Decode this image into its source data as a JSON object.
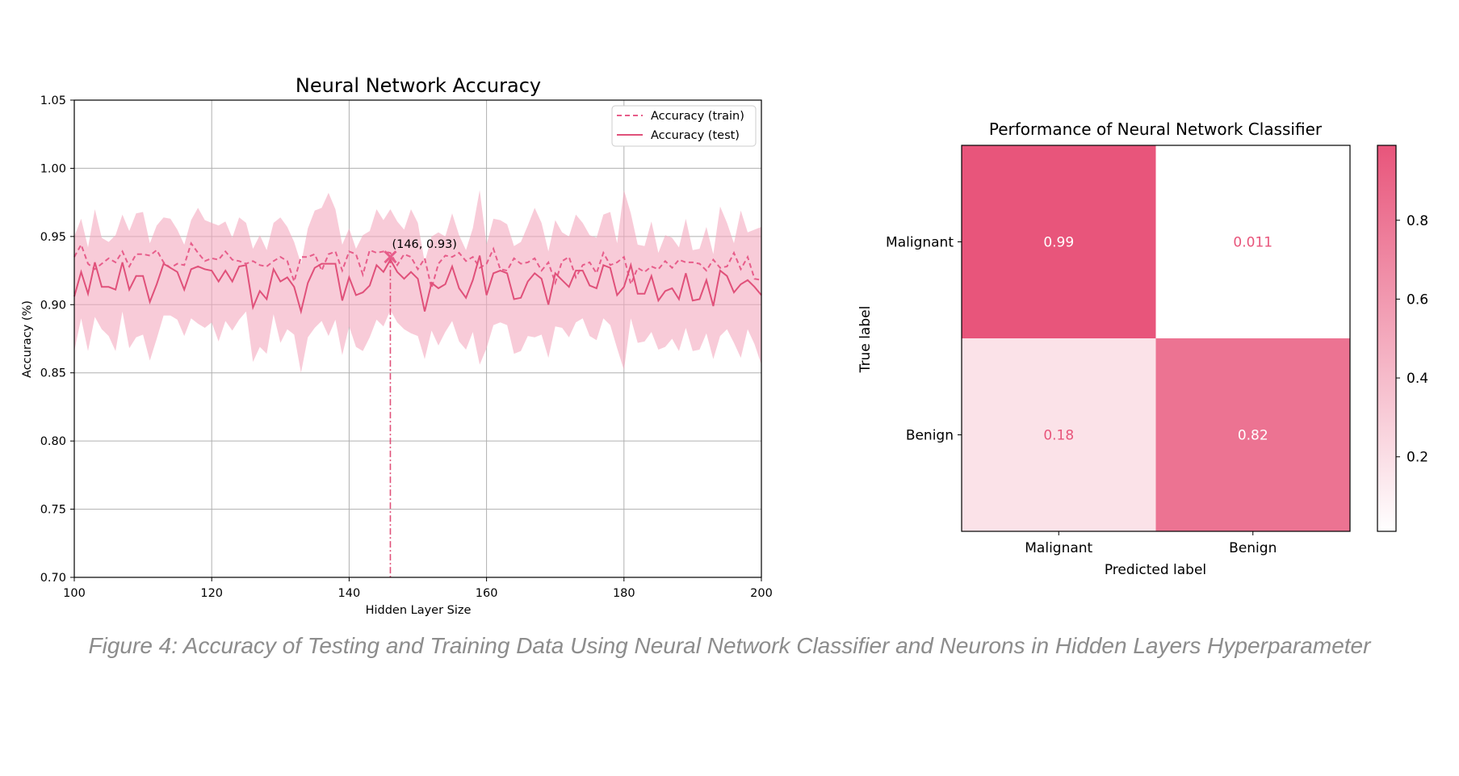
{
  "chart_data": [
    {
      "type": "line",
      "title": "Neural Network Accuracy",
      "xlabel": "Hidden Layer Size",
      "ylabel": "Accuracy (%)",
      "xlim": [
        100,
        200
      ],
      "ylim": [
        0.7,
        1.05
      ],
      "xticks": [
        "100",
        "120",
        "140",
        "160",
        "180",
        "200"
      ],
      "yticks": [
        "0.70",
        "0.75",
        "0.80",
        "0.85",
        "0.90",
        "0.95",
        "1.00",
        "1.05"
      ],
      "grid": true,
      "legend_position": "top-right",
      "x": [
        100,
        101,
        102,
        103,
        104,
        105,
        106,
        107,
        108,
        109,
        110,
        111,
        112,
        113,
        114,
        115,
        116,
        117,
        118,
        119,
        120,
        121,
        122,
        123,
        124,
        125,
        126,
        127,
        128,
        129,
        130,
        131,
        132,
        133,
        134,
        135,
        136,
        137,
        138,
        139,
        140,
        141,
        142,
        143,
        144,
        145,
        146,
        147,
        148,
        149,
        150,
        151,
        152,
        153,
        154,
        155,
        156,
        157,
        158,
        159,
        160,
        161,
        162,
        163,
        164,
        165,
        166,
        167,
        168,
        169,
        170,
        171,
        172,
        173,
        174,
        175,
        176,
        177,
        178,
        179,
        180,
        181,
        182,
        183,
        184,
        185,
        186,
        187,
        188,
        189,
        190,
        191,
        192,
        193,
        194,
        195,
        196,
        197,
        198,
        199,
        200
      ],
      "series": [
        {
          "name": "Accuracy (train)",
          "style": "dashed",
          "color": "#e75d8a",
          "values": [
            0.935,
            0.944,
            0.93,
            0.926,
            0.93,
            0.934,
            0.931,
            0.939,
            0.928,
            0.937,
            0.937,
            0.936,
            0.94,
            0.931,
            0.927,
            0.93,
            0.929,
            0.945,
            0.938,
            0.932,
            0.934,
            0.933,
            0.939,
            0.933,
            0.932,
            0.93,
            0.932,
            0.929,
            0.928,
            0.932,
            0.935,
            0.932,
            0.917,
            0.935,
            0.935,
            0.937,
            0.925,
            0.937,
            0.939,
            0.925,
            0.939,
            0.937,
            0.922,
            0.94,
            0.938,
            0.939,
            0.938,
            0.929,
            0.937,
            0.935,
            0.926,
            0.934,
            0.912,
            0.93,
            0.936,
            0.935,
            0.938,
            0.932,
            0.935,
            0.927,
            0.93,
            0.941,
            0.926,
            0.925,
            0.934,
            0.93,
            0.931,
            0.934,
            0.925,
            0.931,
            0.916,
            0.932,
            0.935,
            0.92,
            0.929,
            0.931,
            0.923,
            0.938,
            0.929,
            0.931,
            0.935,
            0.915,
            0.927,
            0.924,
            0.928,
            0.926,
            0.932,
            0.927,
            0.933,
            0.931,
            0.931,
            0.93,
            0.925,
            0.933,
            0.927,
            0.928,
            0.938,
            0.926,
            0.935,
            0.919,
            0.918
          ]
        },
        {
          "name": "Accuracy (test)",
          "style": "solid",
          "color": "#e0517a",
          "values": [
            0.906,
            0.924,
            0.908,
            0.931,
            0.913,
            0.913,
            0.911,
            0.931,
            0.911,
            0.921,
            0.921,
            0.902,
            0.915,
            0.93,
            0.927,
            0.924,
            0.911,
            0.926,
            0.928,
            0.926,
            0.925,
            0.917,
            0.925,
            0.917,
            0.928,
            0.929,
            0.898,
            0.91,
            0.904,
            0.926,
            0.917,
            0.92,
            0.913,
            0.895,
            0.916,
            0.927,
            0.93,
            0.93,
            0.93,
            0.903,
            0.92,
            0.907,
            0.909,
            0.914,
            0.929,
            0.924,
            0.933,
            0.924,
            0.919,
            0.924,
            0.919,
            0.895,
            0.916,
            0.912,
            0.915,
            0.928,
            0.912,
            0.905,
            0.918,
            0.936,
            0.907,
            0.923,
            0.925,
            0.923,
            0.904,
            0.905,
            0.917,
            0.923,
            0.919,
            0.9,
            0.923,
            0.918,
            0.913,
            0.925,
            0.925,
            0.914,
            0.912,
            0.929,
            0.927,
            0.907,
            0.913,
            0.929,
            0.908,
            0.908,
            0.921,
            0.903,
            0.91,
            0.912,
            0.904,
            0.923,
            0.903,
            0.904,
            0.918,
            0.899,
            0.925,
            0.921,
            0.909,
            0.915,
            0.918,
            0.913,
            0.907
          ]
        }
      ],
      "band": {
        "color": "#f3a8be",
        "upper": [
          0.95,
          0.963,
          0.942,
          0.97,
          0.949,
          0.946,
          0.951,
          0.966,
          0.954,
          0.967,
          0.968,
          0.945,
          0.958,
          0.964,
          0.963,
          0.955,
          0.944,
          0.962,
          0.971,
          0.962,
          0.96,
          0.958,
          0.961,
          0.949,
          0.964,
          0.96,
          0.941,
          0.951,
          0.94,
          0.96,
          0.964,
          0.957,
          0.946,
          0.93,
          0.956,
          0.969,
          0.971,
          0.982,
          0.97,
          0.944,
          0.956,
          0.941,
          0.951,
          0.954,
          0.97,
          0.962,
          0.97,
          0.961,
          0.955,
          0.97,
          0.96,
          0.931,
          0.95,
          0.953,
          0.95,
          0.967,
          0.951,
          0.94,
          0.956,
          0.984,
          0.944,
          0.963,
          0.962,
          0.959,
          0.943,
          0.946,
          0.958,
          0.971,
          0.96,
          0.939,
          0.962,
          0.953,
          0.95,
          0.966,
          0.96,
          0.951,
          0.949,
          0.966,
          0.968,
          0.945,
          0.984,
          0.967,
          0.944,
          0.943,
          0.961,
          0.938,
          0.951,
          0.949,
          0.942,
          0.963,
          0.94,
          0.941,
          0.957,
          0.937,
          0.972,
          0.96,
          0.945,
          0.969,
          0.953,
          0.955,
          0.957
        ],
        "lower": [
          0.866,
          0.89,
          0.866,
          0.891,
          0.882,
          0.877,
          0.866,
          0.895,
          0.868,
          0.876,
          0.878,
          0.859,
          0.875,
          0.892,
          0.892,
          0.889,
          0.877,
          0.89,
          0.886,
          0.883,
          0.887,
          0.873,
          0.888,
          0.881,
          0.889,
          0.895,
          0.858,
          0.869,
          0.864,
          0.893,
          0.872,
          0.882,
          0.878,
          0.85,
          0.876,
          0.883,
          0.888,
          0.877,
          0.889,
          0.863,
          0.884,
          0.869,
          0.866,
          0.876,
          0.889,
          0.884,
          0.896,
          0.887,
          0.882,
          0.879,
          0.877,
          0.86,
          0.881,
          0.87,
          0.88,
          0.888,
          0.873,
          0.867,
          0.88,
          0.856,
          0.868,
          0.885,
          0.887,
          0.885,
          0.864,
          0.866,
          0.877,
          0.876,
          0.878,
          0.861,
          0.884,
          0.883,
          0.876,
          0.887,
          0.89,
          0.877,
          0.874,
          0.89,
          0.885,
          0.868,
          0.852,
          0.89,
          0.872,
          0.873,
          0.88,
          0.867,
          0.869,
          0.875,
          0.866,
          0.883,
          0.866,
          0.867,
          0.879,
          0.86,
          0.877,
          0.882,
          0.872,
          0.861,
          0.882,
          0.871,
          0.856
        ]
      },
      "annotation": {
        "text": "(146, 0.93)",
        "x": 146,
        "y": 0.935,
        "vline_x": 146,
        "marker": "x"
      }
    },
    {
      "type": "heatmap",
      "title": "Performance of Neural Network Classifier",
      "xlabel": "Predicted label",
      "ylabel": "True label",
      "x_categories": [
        "Malignant",
        "Benign"
      ],
      "y_categories": [
        "Malignant",
        "Benign"
      ],
      "values": [
        [
          0.99,
          0.011
        ],
        [
          0.18,
          0.82
        ]
      ],
      "cell_labels": [
        [
          "0.99",
          "0.011"
        ],
        [
          "0.18",
          "0.82"
        ]
      ],
      "colorbar": {
        "range": [
          0.011,
          0.99
        ],
        "ticks": [
          "0.2",
          "0.4",
          "0.6",
          "0.8"
        ],
        "low_color": "#ffffff",
        "high_color": "#e8557b"
      }
    }
  ],
  "caption": "Figure 4: Accuracy of Testing and Training Data Using Neural Network Classifier and Neurons in Hidden Layers Hyperparameter"
}
